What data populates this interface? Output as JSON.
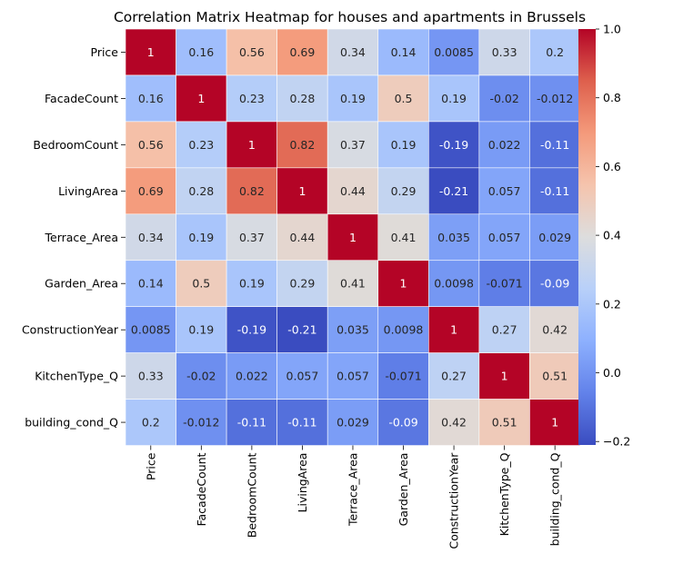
{
  "chart_data": {
    "type": "heatmap",
    "title": "Correlation Matrix Heatmap for houses and apartments in Brussels",
    "xlabel": "",
    "ylabel": "",
    "row_labels": [
      "Price",
      "FacadeCount",
      "BedroomCount",
      "LivingArea",
      "Terrace_Area",
      "Garden_Area",
      "ConstructionYear",
      "KitchenType_Q",
      "building_cond_Q"
    ],
    "col_labels": [
      "Price",
      "FacadeCount",
      "BedroomCount",
      "LivingArea",
      "Terrace_Area",
      "Garden_Area",
      "ConstructionYear",
      "KitchenType_Q",
      "building_cond_Q"
    ],
    "values": [
      [
        1,
        0.16,
        0.56,
        0.69,
        0.34,
        0.14,
        0.0085,
        0.33,
        0.2
      ],
      [
        0.16,
        1,
        0.23,
        0.28,
        0.19,
        0.5,
        0.19,
        -0.02,
        -0.012
      ],
      [
        0.56,
        0.23,
        1,
        0.82,
        0.37,
        0.19,
        -0.19,
        0.022,
        -0.11
      ],
      [
        0.69,
        0.28,
        0.82,
        1,
        0.44,
        0.29,
        -0.21,
        0.057,
        -0.11
      ],
      [
        0.34,
        0.19,
        0.37,
        0.44,
        1,
        0.41,
        0.035,
        0.057,
        0.029
      ],
      [
        0.14,
        0.5,
        0.19,
        0.29,
        0.41,
        1,
        0.0098,
        -0.071,
        -0.09
      ],
      [
        0.0085,
        0.19,
        -0.19,
        -0.21,
        0.035,
        0.0098,
        1,
        0.27,
        0.42
      ],
      [
        0.33,
        -0.02,
        0.022,
        0.057,
        0.057,
        -0.071,
        0.27,
        1,
        0.51
      ],
      [
        0.2,
        -0.012,
        -0.11,
        -0.11,
        0.029,
        -0.09,
        0.42,
        0.51,
        1
      ]
    ],
    "cell_labels": [
      [
        "1",
        "0.16",
        "0.56",
        "0.69",
        "0.34",
        "0.14",
        "0.0085",
        "0.33",
        "0.2"
      ],
      [
        "0.16",
        "1",
        "0.23",
        "0.28",
        "0.19",
        "0.5",
        "0.19",
        "-0.02",
        "-0.012"
      ],
      [
        "0.56",
        "0.23",
        "1",
        "0.82",
        "0.37",
        "0.19",
        "-0.19",
        "0.022",
        "-0.11"
      ],
      [
        "0.69",
        "0.28",
        "0.82",
        "1",
        "0.44",
        "0.29",
        "-0.21",
        "0.057",
        "-0.11"
      ],
      [
        "0.34",
        "0.19",
        "0.37",
        "0.44",
        "1",
        "0.41",
        "0.035",
        "0.057",
        "0.029"
      ],
      [
        "0.14",
        "0.5",
        "0.19",
        "0.29",
        "0.41",
        "1",
        "0.0098",
        "-0.071",
        "-0.09"
      ],
      [
        "0.0085",
        "0.19",
        "-0.19",
        "-0.21",
        "0.035",
        "0.0098",
        "1",
        "0.27",
        "0.42"
      ],
      [
        "0.33",
        "-0.02",
        "0.022",
        "0.057",
        "0.057",
        "-0.071",
        "0.27",
        "1",
        "0.51"
      ],
      [
        "0.2",
        "-0.012",
        "-0.11",
        "-0.11",
        "0.029",
        "-0.09",
        "0.42",
        "0.51",
        "1"
      ]
    ],
    "colormap": "coolwarm",
    "vmin": -0.21,
    "vmax": 1,
    "colorbar_ticks": [
      1.0,
      0.8,
      0.6,
      0.4,
      0.2,
      0.0,
      -0.2
    ],
    "colorbar_tick_labels": [
      "1.0",
      "0.8",
      "0.6",
      "0.4",
      "0.2",
      "0.0",
      "−0.2"
    ]
  }
}
